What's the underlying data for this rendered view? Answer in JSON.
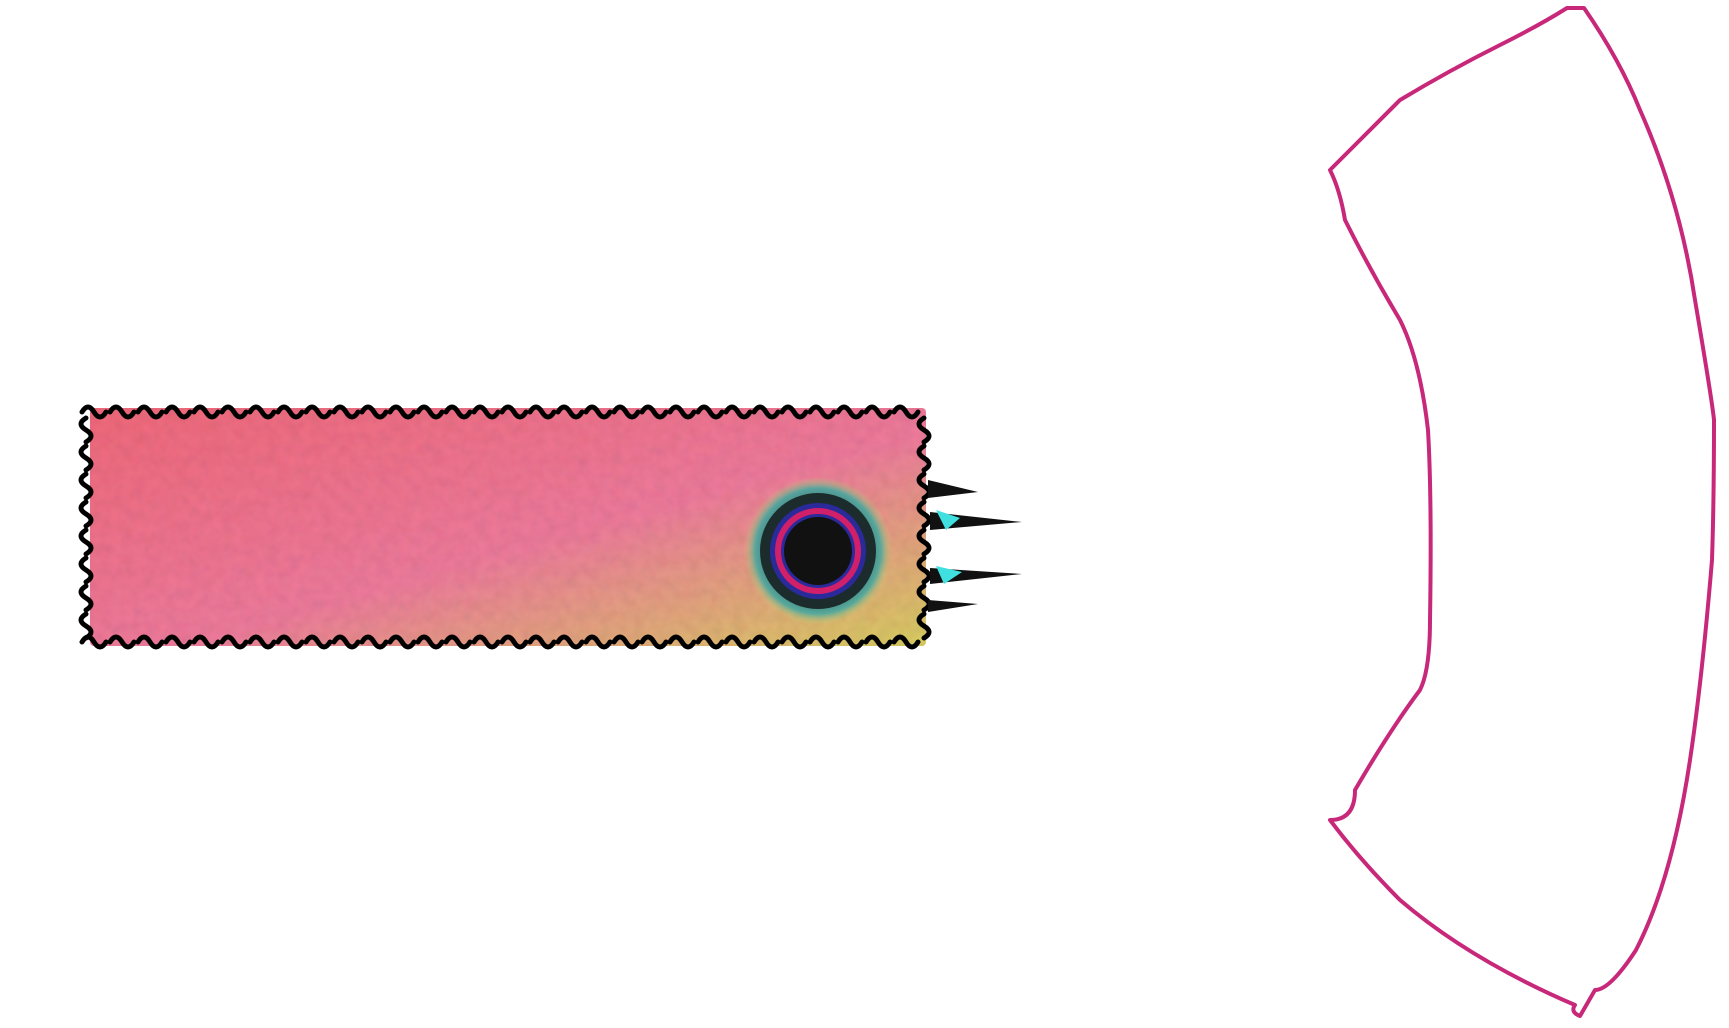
{
  "artwork": {
    "colors": {
      "background": "#ffffff",
      "panel_fill_start": "#f06a7a",
      "panel_fill_mid": "#f07aa0",
      "panel_fill_end": "#d8d060",
      "panel_outline": "#000000",
      "spike_highlight": "#40e0e0",
      "ring_outer": "#3a8a88",
      "ring_dark": "#1a2a2a",
      "ring_blue": "#2a2a9a",
      "ring_magenta": "#d0206a",
      "core": "#111111",
      "arc_outline": "#c8287a"
    },
    "icons": [
      "squiggle-panel",
      "target-ring-icon",
      "spike-icon",
      "arc-outline-shape"
    ]
  }
}
